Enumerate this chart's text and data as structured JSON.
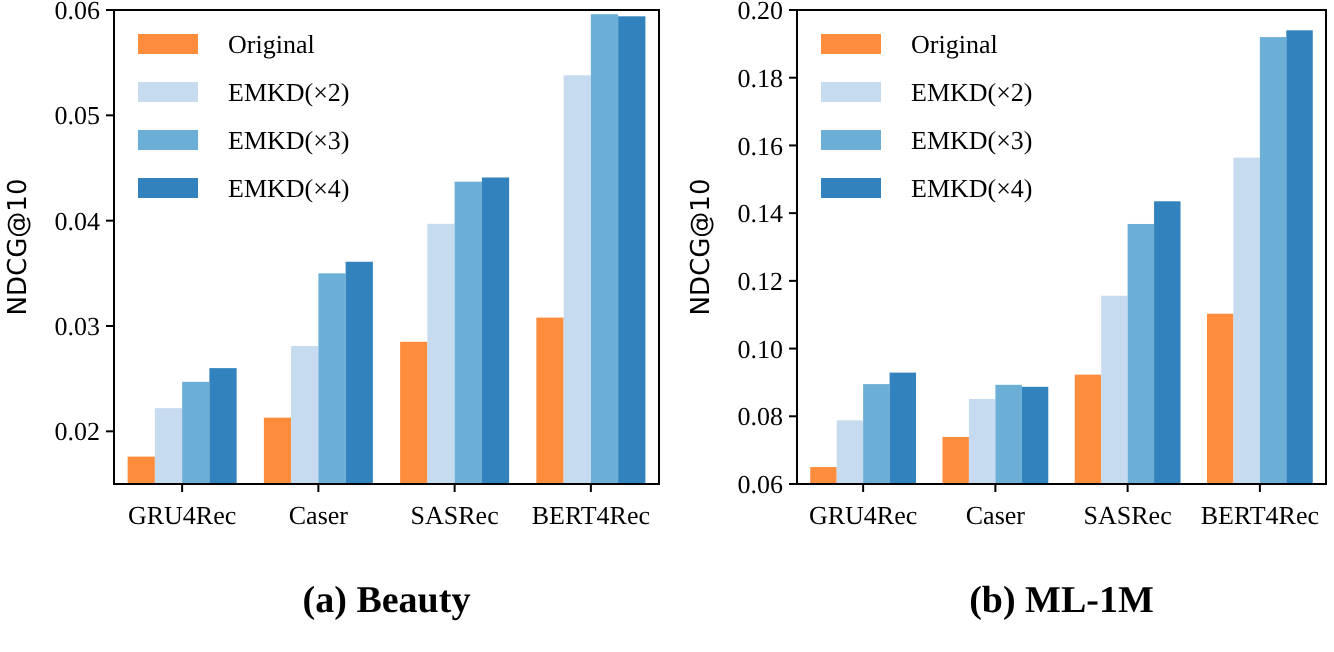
{
  "chart_data": [
    {
      "type": "bar",
      "title": "(a) Beauty",
      "ylabel": "NDCG@10",
      "categories": [
        "GRU4Rec",
        "Caser",
        "SASRec",
        "BERT4Rec"
      ],
      "ylim": [
        0.015,
        0.06
      ],
      "yticks": [
        0.02,
        0.03,
        0.04,
        0.05,
        0.06
      ],
      "legend": "top left",
      "grid": false,
      "series": [
        {
          "name": "Original",
          "color": "#fd8d3c",
          "values": [
            0.0176,
            0.0213,
            0.0285,
            0.0308
          ]
        },
        {
          "name": "EMKD(×2)",
          "color": "#c6dbef",
          "values": [
            0.0222,
            0.0281,
            0.0397,
            0.0538
          ]
        },
        {
          "name": "EMKD(×3)",
          "color": "#6baed6",
          "values": [
            0.0247,
            0.035,
            0.0437,
            0.0596
          ]
        },
        {
          "name": "EMKD(×4)",
          "color": "#3182bd",
          "values": [
            0.026,
            0.0361,
            0.0441,
            0.0594
          ]
        }
      ]
    },
    {
      "type": "bar",
      "title": "(b) ML-1M",
      "ylabel": "NDCG@10",
      "categories": [
        "GRU4Rec",
        "Caser",
        "SASRec",
        "BERT4Rec"
      ],
      "ylim": [
        0.06,
        0.2
      ],
      "yticks": [
        {
          "value": 0.06,
          "label": "0.06"
        },
        {
          "value": 0.08,
          "label": "0.08"
        },
        {
          "value": 0.1,
          "label": "0.10"
        },
        {
          "value": 0.12,
          "label": "0.12"
        },
        {
          "value": 0.14,
          "label": "0.14"
        },
        {
          "value": 0.16,
          "label": "0.16"
        },
        {
          "value": 0.18,
          "label": "0.18"
        },
        {
          "value": 0.2,
          "label": "0.20"
        }
      ],
      "legend": "top left",
      "grid": false,
      "series": [
        {
          "name": "Original",
          "color": "#fd8d3c",
          "values": [
            0.065,
            0.0739,
            0.0923,
            0.1103
          ]
        },
        {
          "name": "EMKD(×2)",
          "color": "#c6dbef",
          "values": [
            0.0788,
            0.0851,
            0.1156,
            0.1564
          ]
        },
        {
          "name": "EMKD(×3)",
          "color": "#6baed6",
          "values": [
            0.0895,
            0.0893,
            0.1368,
            0.192
          ]
        },
        {
          "name": "EMKD(×4)",
          "color": "#3182bd",
          "values": [
            0.0929,
            0.0887,
            0.1435,
            0.194
          ]
        }
      ]
    }
  ]
}
